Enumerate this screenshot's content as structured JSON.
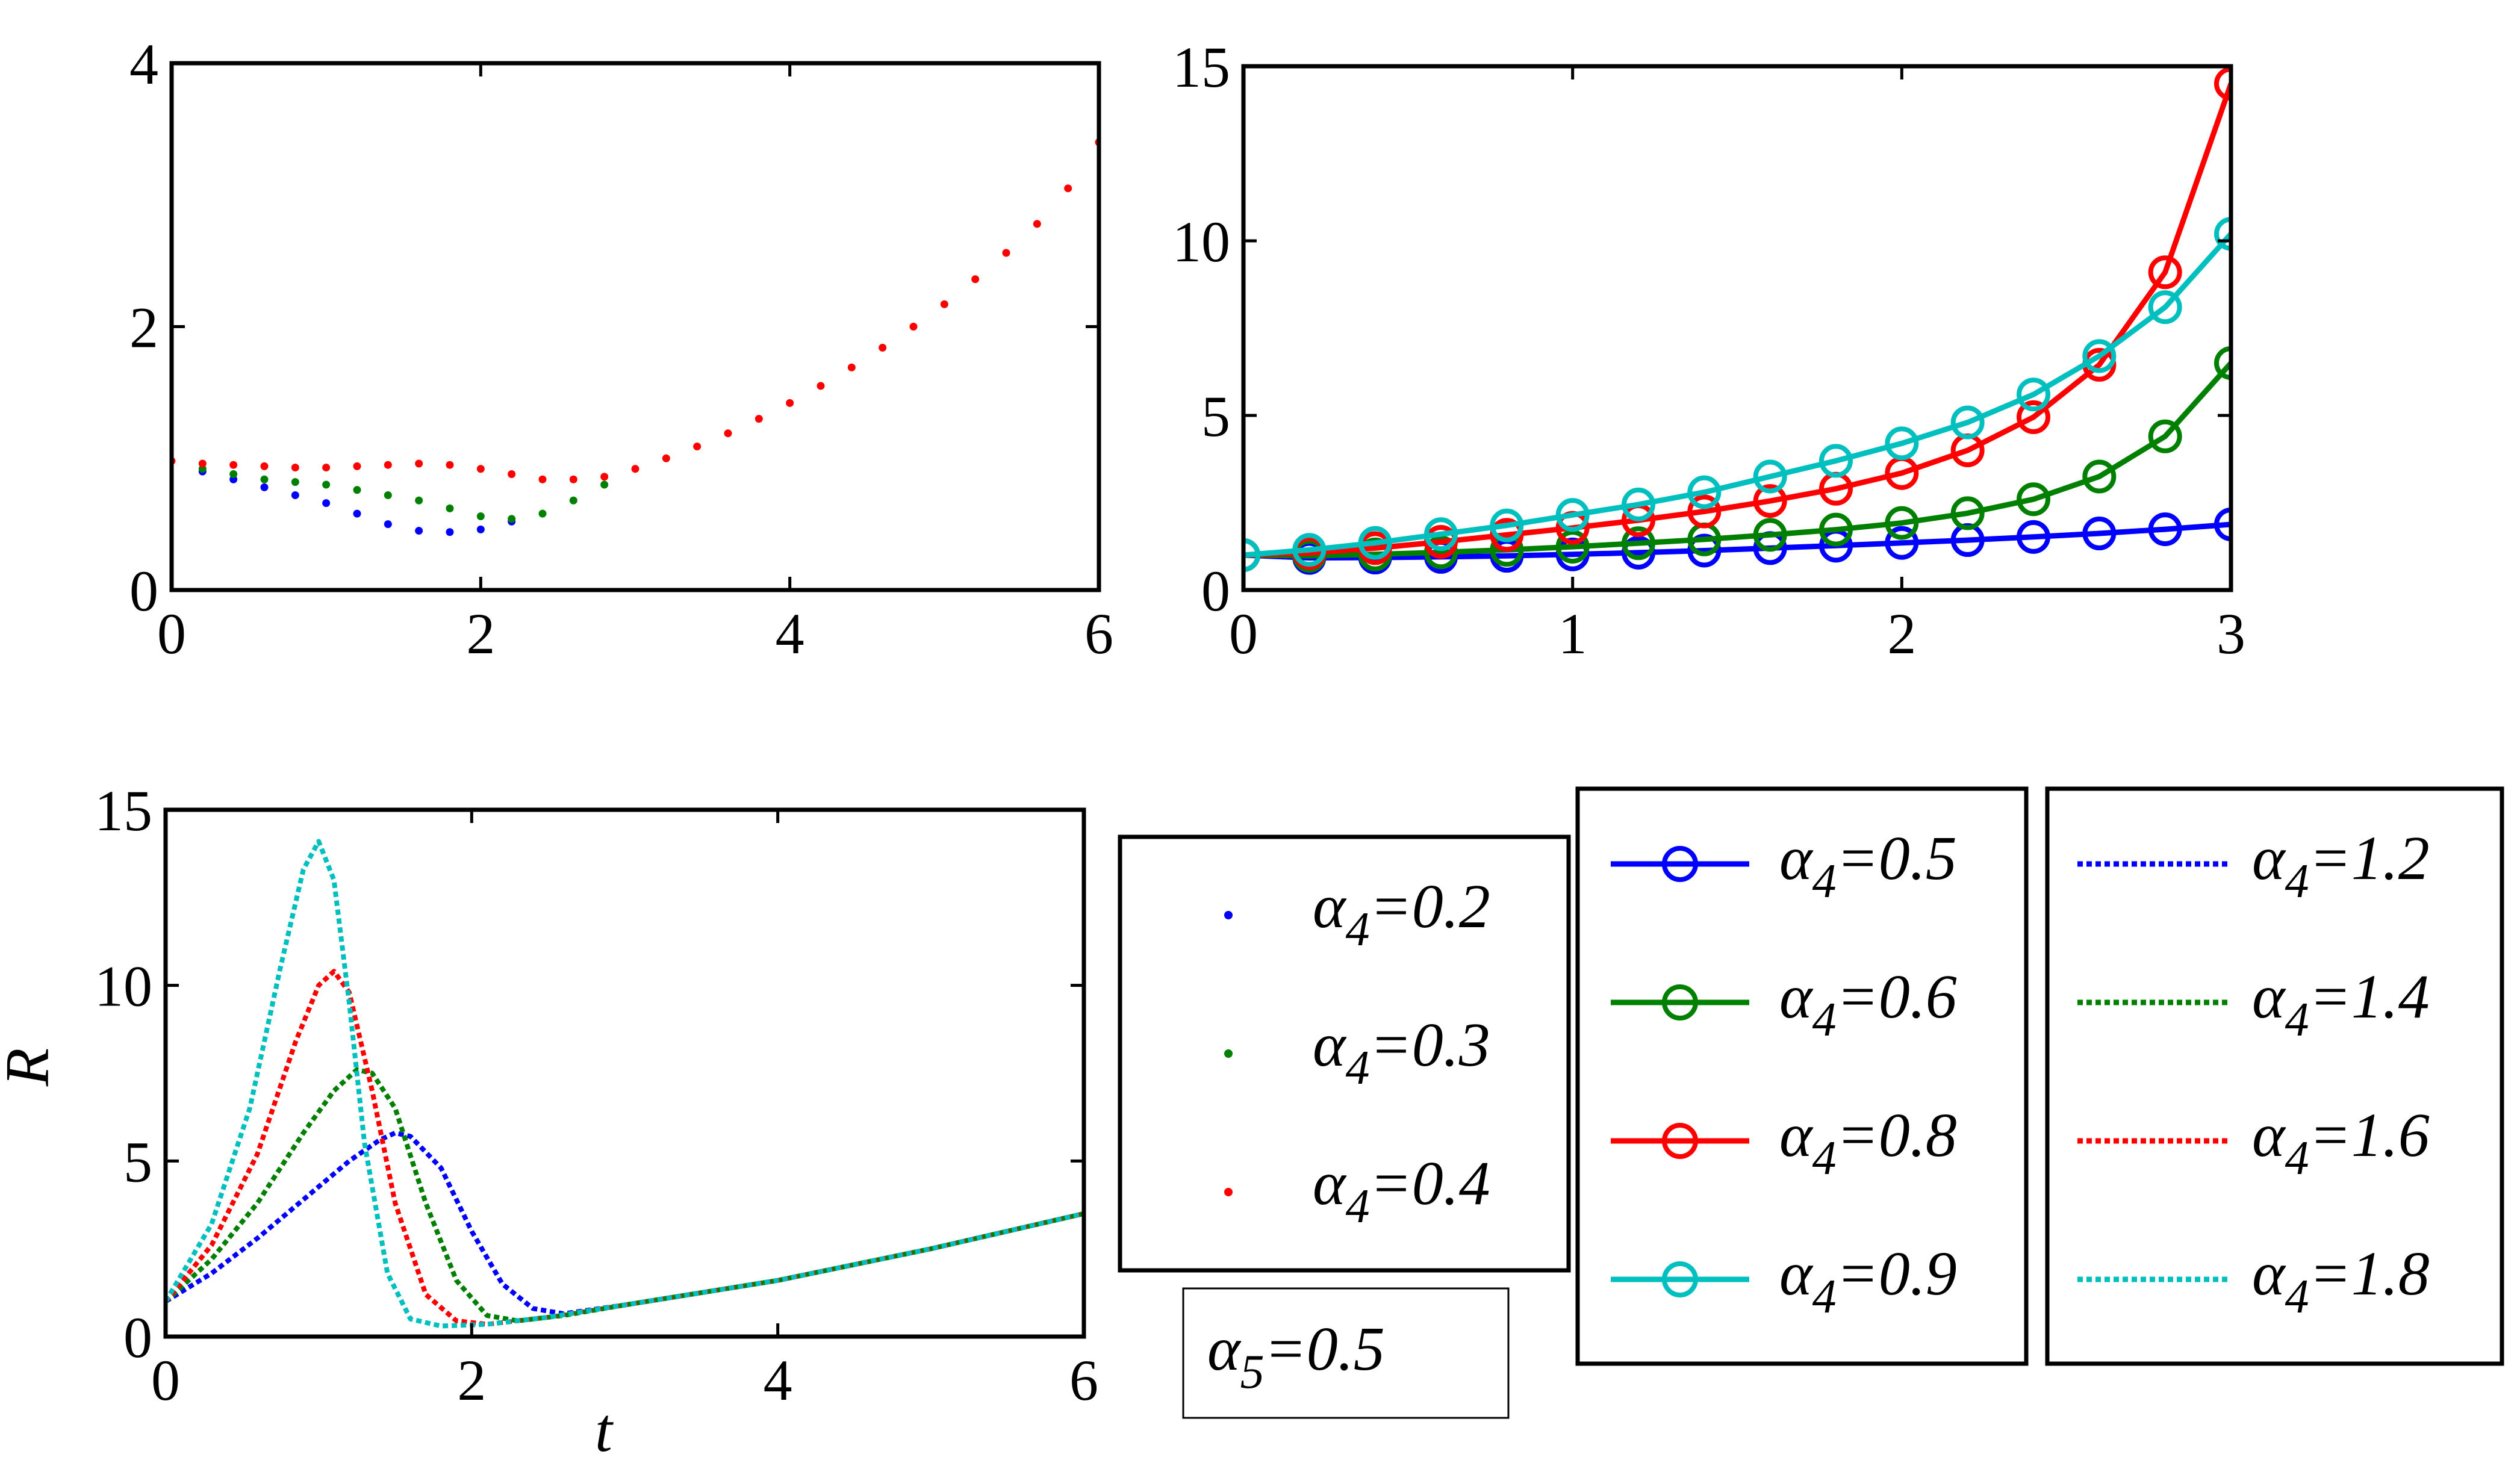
{
  "chart_data": [
    {
      "id": "top-left",
      "type": "scatter",
      "title": "",
      "xlabel": "",
      "ylabel": "",
      "xlim": [
        0,
        6
      ],
      "ylim": [
        0,
        4
      ],
      "xticks": [
        "0",
        "2",
        "4",
        "6"
      ],
      "yticks": [
        "0",
        "2",
        "4"
      ],
      "series": [
        {
          "name": "α4=0.2",
          "color": "#0000ff",
          "x": [
            0.2,
            0.4,
            0.6,
            0.8,
            1.0,
            1.2,
            1.4,
            1.6,
            1.8,
            2.0,
            2.2
          ],
          "y": [
            0.9,
            0.84,
            0.78,
            0.72,
            0.66,
            0.58,
            0.5,
            0.45,
            0.44,
            0.46,
            0.52
          ]
        },
        {
          "name": "α4=0.3",
          "color": "#008000",
          "x": [
            0.2,
            0.4,
            0.6,
            0.8,
            1.0,
            1.2,
            1.4,
            1.6,
            1.8,
            2.0,
            2.2,
            2.4,
            2.6,
            2.8
          ],
          "y": [
            0.92,
            0.88,
            0.84,
            0.82,
            0.8,
            0.76,
            0.72,
            0.68,
            0.62,
            0.56,
            0.54,
            0.58,
            0.68,
            0.8
          ]
        },
        {
          "name": "α4=0.4",
          "color": "#ff0000",
          "x": [
            0,
            0.2,
            0.4,
            0.6,
            0.8,
            1.0,
            1.2,
            1.4,
            1.6,
            1.8,
            2.0,
            2.2,
            2.4,
            2.6,
            2.8,
            3.0,
            3.2,
            3.4,
            3.6,
            3.8,
            4.0,
            4.2,
            4.4,
            4.6,
            4.8,
            5.0,
            5.2,
            5.4,
            5.6,
            5.8,
            6.0
          ],
          "y": [
            0.98,
            0.96,
            0.95,
            0.94,
            0.93,
            0.93,
            0.94,
            0.95,
            0.96,
            0.95,
            0.92,
            0.88,
            0.84,
            0.84,
            0.86,
            0.92,
            1.0,
            1.09,
            1.19,
            1.3,
            1.42,
            1.55,
            1.69,
            1.84,
            2.0,
            2.17,
            2.36,
            2.56,
            2.78,
            3.05,
            3.4
          ]
        }
      ]
    },
    {
      "id": "top-right",
      "type": "line",
      "title": "",
      "xlabel": "",
      "ylabel": "",
      "xlim": [
        0,
        3
      ],
      "ylim": [
        0,
        15
      ],
      "xticks": [
        "0",
        "1",
        "2",
        "3"
      ],
      "yticks": [
        "0",
        "5",
        "10",
        "15"
      ],
      "x": [
        0,
        0.2,
        0.4,
        0.6,
        0.8,
        1.0,
        1.2,
        1.4,
        1.6,
        1.8,
        2.0,
        2.2,
        2.4,
        2.6,
        2.8,
        3.0
      ],
      "series": [
        {
          "name": "α4=0.5",
          "color": "#0000ff",
          "values": [
            1.0,
            0.92,
            0.93,
            0.95,
            0.98,
            1.02,
            1.07,
            1.13,
            1.2,
            1.27,
            1.35,
            1.43,
            1.52,
            1.62,
            1.74,
            1.88
          ]
        },
        {
          "name": "α4=0.6",
          "color": "#008000",
          "values": [
            1.0,
            0.98,
            1.02,
            1.08,
            1.15,
            1.24,
            1.34,
            1.45,
            1.58,
            1.73,
            1.92,
            2.2,
            2.6,
            3.25,
            4.4,
            6.5
          ]
        },
        {
          "name": "α4=0.8",
          "color": "#ff0000",
          "values": [
            1.0,
            1.06,
            1.2,
            1.38,
            1.58,
            1.78,
            2.0,
            2.25,
            2.55,
            2.9,
            3.35,
            4.0,
            4.95,
            6.45,
            9.1,
            14.5
          ]
        },
        {
          "name": "α4=0.9",
          "color": "#00bfbf",
          "values": [
            1.0,
            1.15,
            1.35,
            1.6,
            1.85,
            2.15,
            2.45,
            2.8,
            3.25,
            3.7,
            4.2,
            4.8,
            5.6,
            6.7,
            8.1,
            10.2
          ]
        }
      ]
    },
    {
      "id": "bottom-left",
      "type": "line",
      "title": "",
      "xlabel": "t",
      "ylabel": "R",
      "xlim": [
        0,
        6
      ],
      "ylim": [
        0,
        15
      ],
      "xticks": [
        "0",
        "2",
        "4",
        "6"
      ],
      "yticks": [
        "0",
        "5",
        "10",
        "15"
      ],
      "series": [
        {
          "name": "α4=1.2",
          "color": "#0000ff",
          "x": [
            0,
            0.3,
            0.6,
            0.9,
            1.2,
            1.4,
            1.5,
            1.6,
            1.8,
            2.0,
            2.2,
            2.4,
            2.6,
            3.0,
            4.0,
            5.0,
            6.0
          ],
          "y": [
            1.0,
            1.8,
            2.8,
            3.9,
            5.0,
            5.6,
            5.8,
            5.7,
            4.8,
            3.0,
            1.5,
            0.8,
            0.65,
            0.9,
            1.6,
            2.5,
            3.5
          ]
        },
        {
          "name": "α4=1.4",
          "color": "#008000",
          "x": [
            0,
            0.3,
            0.6,
            0.9,
            1.1,
            1.25,
            1.35,
            1.5,
            1.7,
            1.9,
            2.1,
            2.3,
            2.6,
            3.0,
            4.0,
            5.0,
            6.0
          ],
          "y": [
            1.0,
            2.2,
            3.8,
            5.8,
            7.0,
            7.6,
            7.5,
            6.5,
            3.8,
            1.6,
            0.6,
            0.45,
            0.6,
            0.9,
            1.6,
            2.5,
            3.5
          ]
        },
        {
          "name": "α4=1.6",
          "color": "#ff0000",
          "x": [
            0,
            0.3,
            0.6,
            0.85,
            1.0,
            1.1,
            1.2,
            1.35,
            1.5,
            1.7,
            1.9,
            2.1,
            2.5,
            3.0,
            4.0,
            5.0,
            6.0
          ],
          "y": [
            1.0,
            2.6,
            5.2,
            8.4,
            10.0,
            10.4,
            9.8,
            7.0,
            3.8,
            1.2,
            0.45,
            0.35,
            0.55,
            0.9,
            1.6,
            2.5,
            3.5
          ]
        },
        {
          "name": "α4=1.8",
          "color": "#00bfbf",
          "x": [
            0,
            0.3,
            0.55,
            0.75,
            0.9,
            1.0,
            1.1,
            1.2,
            1.3,
            1.45,
            1.6,
            1.8,
            2.1,
            2.5,
            3.0,
            4.0,
            5.0,
            6.0
          ],
          "y": [
            1.0,
            3.2,
            6.5,
            10.5,
            13.3,
            14.1,
            13.0,
            9.5,
            5.5,
            1.8,
            0.5,
            0.3,
            0.35,
            0.55,
            0.9,
            1.6,
            2.5,
            3.5
          ]
        }
      ]
    }
  ],
  "legends": {
    "scatter": [
      {
        "symbol": "α",
        "sub": "4",
        "value": "=0.2",
        "color": "#0000ff"
      },
      {
        "symbol": "α",
        "sub": "4",
        "value": "=0.3",
        "color": "#008000"
      },
      {
        "symbol": "α",
        "sub": "4",
        "value": "=0.4",
        "color": "#ff0000"
      }
    ],
    "circles": [
      {
        "symbol": "α",
        "sub": "4",
        "value": "=0.5",
        "color": "#0000ff"
      },
      {
        "symbol": "α",
        "sub": "4",
        "value": "=0.6",
        "color": "#008000"
      },
      {
        "symbol": "α",
        "sub": "4",
        "value": "=0.8",
        "color": "#ff0000"
      },
      {
        "symbol": "α",
        "sub": "4",
        "value": "=0.9",
        "color": "#00bfbf"
      }
    ],
    "dotted": [
      {
        "symbol": "α",
        "sub": "4",
        "value": "=1.2",
        "color": "#0000ff"
      },
      {
        "symbol": "α",
        "sub": "4",
        "value": "=1.4",
        "color": "#008000"
      },
      {
        "symbol": "α",
        "sub": "4",
        "value": "=1.6",
        "color": "#ff0000"
      },
      {
        "symbol": "α",
        "sub": "4",
        "value": "=1.8",
        "color": "#00bfbf"
      }
    ],
    "param": {
      "symbol": "α",
      "sub": "5",
      "value": "=0.5"
    }
  }
}
